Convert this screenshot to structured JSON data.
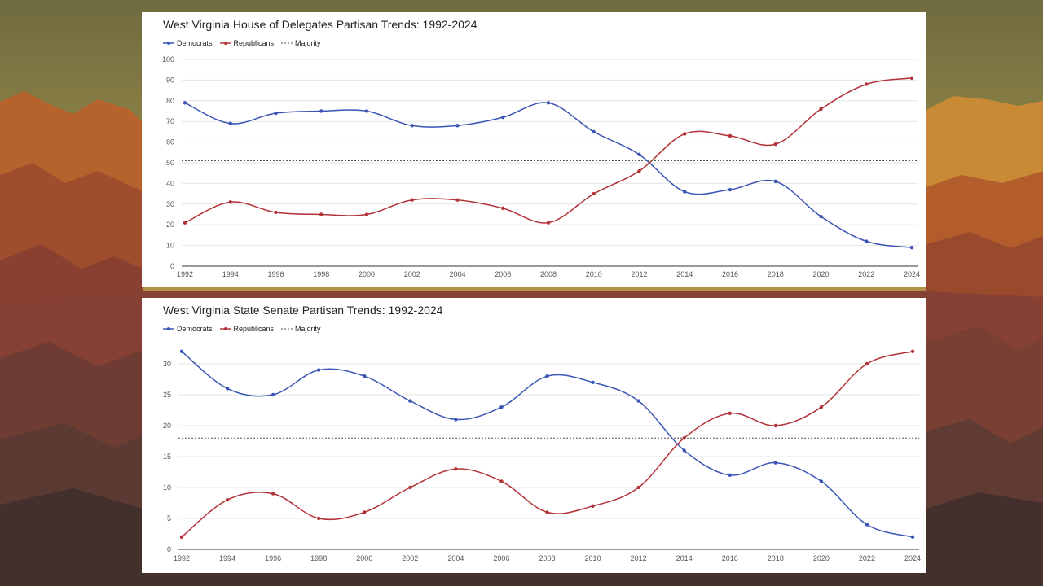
{
  "colors": {
    "democrats": "#3a55b4",
    "republicans": "#b23238",
    "majority": "#555555",
    "grid": "#e6e6e6",
    "axis": "#333333"
  },
  "chart_data": [
    {
      "type": "line",
      "title": "West Virginia House of Delegates Partisan Trends: 1992-2024",
      "xlabel": "",
      "ylabel": "",
      "legend_placement": "top-left",
      "grid": true,
      "x": [
        "1992",
        "1994",
        "1996",
        "1998",
        "2000",
        "2002",
        "2004",
        "2006",
        "2008",
        "2010",
        "2012",
        "2014",
        "2016",
        "2018",
        "2020",
        "2022",
        "2024"
      ],
      "ylim": [
        0,
        100
      ],
      "yticks": [
        0,
        10,
        20,
        30,
        40,
        50,
        60,
        70,
        80,
        90,
        100
      ],
      "series": [
        {
          "name": "Democrats",
          "key": "democrats",
          "style": "solid",
          "markers": true,
          "values": [
            79,
            69,
            74,
            75,
            75,
            68,
            68,
            72,
            79,
            65,
            54,
            36,
            37,
            41,
            24,
            12,
            9
          ]
        },
        {
          "name": "Republicans",
          "key": "republicans",
          "style": "solid",
          "markers": true,
          "values": [
            21,
            31,
            26,
            25,
            25,
            32,
            32,
            28,
            21,
            35,
            46,
            64,
            63,
            59,
            76,
            88,
            91
          ]
        },
        {
          "name": "Majority",
          "key": "majority",
          "style": "dashed",
          "markers": false,
          "values": [
            51,
            51,
            51,
            51,
            51,
            51,
            51,
            51,
            51,
            51,
            51,
            51,
            51,
            51,
            51,
            51,
            51
          ]
        }
      ]
    },
    {
      "type": "line",
      "title": "West Virginia State Senate Partisan Trends: 1992-2024",
      "xlabel": "",
      "ylabel": "",
      "legend_placement": "top-left",
      "grid": true,
      "x": [
        "1992",
        "1994",
        "1996",
        "1998",
        "2000",
        "2002",
        "2004",
        "2006",
        "2008",
        "2010",
        "2012",
        "2014",
        "2016",
        "2018",
        "2020",
        "2022",
        "2024"
      ],
      "ylim": [
        0,
        32.5
      ],
      "yticks": [
        0,
        5,
        10,
        15,
        20,
        25,
        30
      ],
      "series": [
        {
          "name": "Democrats",
          "key": "democrats",
          "style": "solid",
          "markers": true,
          "values": [
            32,
            26,
            25,
            29,
            28,
            24,
            21,
            23,
            28,
            27,
            24,
            16,
            12,
            14,
            11,
            4,
            2
          ]
        },
        {
          "name": "Republicans",
          "key": "republicans",
          "style": "solid",
          "markers": true,
          "values": [
            2,
            8,
            9,
            5,
            6,
            10,
            13,
            11,
            6,
            7,
            10,
            18,
            22,
            20,
            23,
            30,
            32
          ]
        },
        {
          "name": "Majority",
          "key": "majority",
          "style": "dashed",
          "markers": false,
          "values": [
            18,
            18,
            18,
            18,
            18,
            18,
            18,
            18,
            18,
            18,
            18,
            18,
            18,
            18,
            18,
            18,
            18
          ]
        }
      ]
    }
  ]
}
